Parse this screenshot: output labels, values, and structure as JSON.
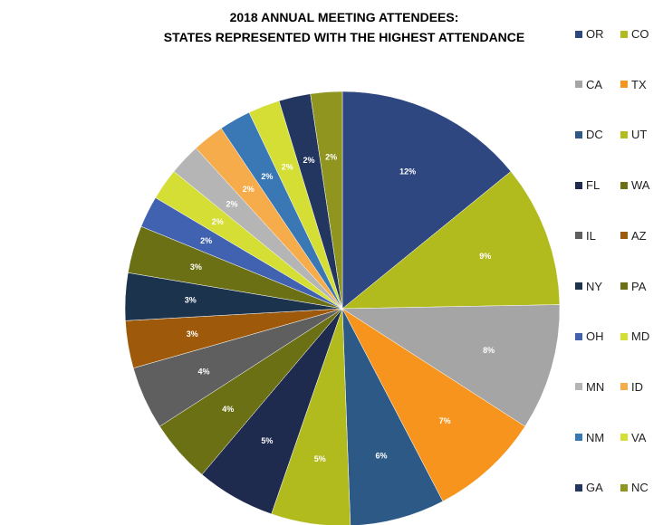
{
  "chart_data": {
    "type": "pie",
    "title_lines": [
      "2018 ANNUAL MEETING ATTENDEES:",
      "STATES REPRESENTED WITH THE HIGHEST ATTENDANCE"
    ],
    "legend_position": "right",
    "slices": [
      {
        "label": "OR",
        "value": 12,
        "data_label": "12%",
        "color": "#2E4780"
      },
      {
        "label": "CO",
        "value": 9,
        "data_label": "9%",
        "color": "#B2BB1E"
      },
      {
        "label": "CA",
        "value": 8,
        "data_label": "8%",
        "color": "#A5A5A5"
      },
      {
        "label": "TX",
        "value": 7,
        "data_label": "7%",
        "color": "#F7941D"
      },
      {
        "label": "DC",
        "value": 6,
        "data_label": "6%",
        "color": "#2C5985"
      },
      {
        "label": "UT",
        "value": 5,
        "data_label": "5%",
        "color": "#B2BB1E"
      },
      {
        "label": "FL",
        "value": 5,
        "data_label": "5%",
        "color": "#1E2A4E"
      },
      {
        "label": "WA",
        "value": 4,
        "data_label": "4%",
        "color": "#6B7014"
      },
      {
        "label": "IL",
        "value": 4,
        "data_label": "4%",
        "color": "#5F5F5F"
      },
      {
        "label": "AZ",
        "value": 3,
        "data_label": "3%",
        "color": "#9E5A0A"
      },
      {
        "label": "NY",
        "value": 3,
        "data_label": "3%",
        "color": "#1B334D"
      },
      {
        "label": "PA",
        "value": 3,
        "data_label": "3%",
        "color": "#6B7014"
      },
      {
        "label": "OH",
        "value": 2,
        "data_label": "2%",
        "color": "#4162B0"
      },
      {
        "label": "MD",
        "value": 2,
        "data_label": "2%",
        "color": "#D4DE35"
      },
      {
        "label": "MN",
        "value": 2,
        "data_label": "2%",
        "color": "#B5B5B5"
      },
      {
        "label": "ID",
        "value": 2,
        "data_label": "2%",
        "color": "#F7AC4C"
      },
      {
        "label": "NM",
        "value": 2,
        "data_label": "2%",
        "color": "#3A78B5"
      },
      {
        "label": "VA",
        "value": 2,
        "data_label": "2%",
        "color": "#D4DE35"
      },
      {
        "label": "GA",
        "value": 2,
        "data_label": "2%",
        "color": "#233660"
      },
      {
        "label": "NC",
        "value": 2,
        "data_label": "2%",
        "color": "#8F951E"
      }
    ]
  }
}
